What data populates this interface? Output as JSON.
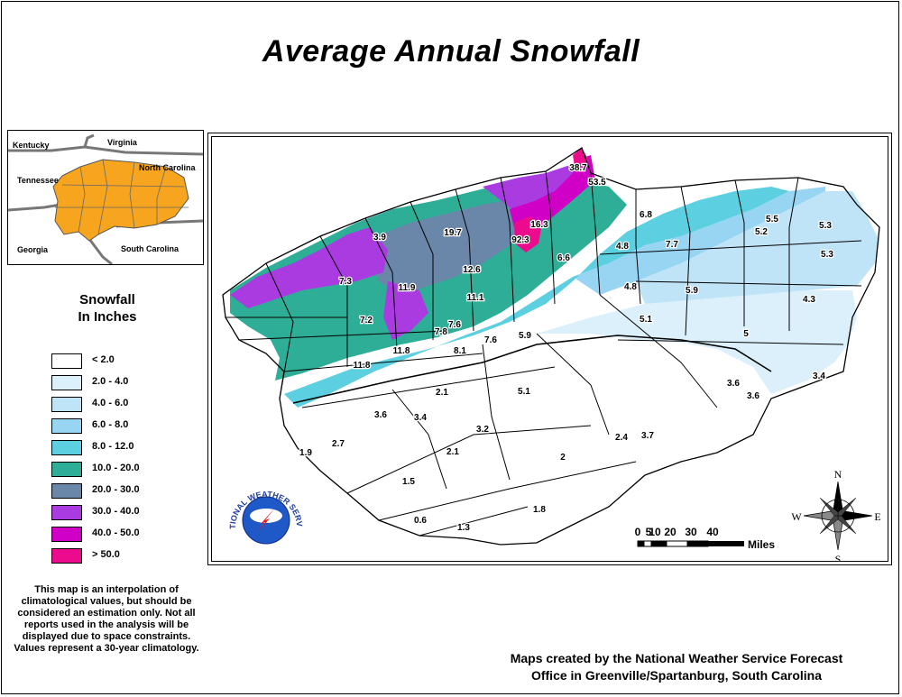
{
  "title": "Average Annual Snowfall",
  "inset_map": {
    "states": [
      "Kentucky",
      "Virginia",
      "Tennessee",
      "North Carolina",
      "Georgia",
      "South Carolina"
    ]
  },
  "legend": {
    "title_line1": "Snowfall",
    "title_line2": "In Inches",
    "items": [
      {
        "label": "< 2.0",
        "color": "#ffffff"
      },
      {
        "label": "2.0 - 4.0",
        "color": "#dcf0fb"
      },
      {
        "label": "4.0 - 6.0",
        "color": "#bfe3f7"
      },
      {
        "label": "6.0 - 8.0",
        "color": "#98d5f3"
      },
      {
        "label": "8.0 - 12.0",
        "color": "#5cd0e0"
      },
      {
        "label": "10.0 - 20.0",
        "color": "#2fae97"
      },
      {
        "label": "20.0 - 30.0",
        "color": "#6a86a8"
      },
      {
        "label": "30.0 - 40.0",
        "color": "#a93be0"
      },
      {
        "label": "40.0 - 50.0",
        "color": "#d100c6"
      },
      {
        "label": "> 50.0",
        "color": "#ec0a8d"
      }
    ]
  },
  "values": [
    "38.7",
    "53.5",
    "16.3",
    "92.3",
    "19.7",
    "3.9",
    "6.8",
    "5.5",
    "5.3",
    "5.2",
    "5.3",
    "4.8",
    "7.7",
    "6.6",
    "12.6",
    "7.3",
    "11.9",
    "11.1",
    "4.8",
    "5.9",
    "4.3",
    "7.2",
    "7.6",
    "7.6",
    "5.1",
    "7.8",
    "8.1",
    "5.9",
    "5",
    "11.8",
    "11.8",
    "3.6",
    "3.4",
    "2.1",
    "5.1",
    "3.6",
    "3.6",
    "3.4",
    "3.2",
    "2.4",
    "3.7",
    "2.7",
    "1.9",
    "2.1",
    "2",
    "1.5",
    "0.6",
    "1.3",
    "1.8"
  ],
  "scale": {
    "ticks": [
      "0",
      "5",
      "10",
      "20",
      "30",
      "40"
    ],
    "unit": "Miles"
  },
  "compass": {
    "n": "N",
    "s": "S",
    "e": "E",
    "w": "W"
  },
  "logo": {
    "text": "NATIONAL WEATHER SERVICE"
  },
  "disclaimer": "This map is an interpolation of climatological values, but should be considered an estimation only. Not all reports used in the analysis will be displayed due to space constraints. Values represent a 30-year climatology.",
  "credit_line1": "Maps created by the National Weather Service Forecast",
  "credit_line2": "Office in Greenville/Spartanburg, South Carolina"
}
